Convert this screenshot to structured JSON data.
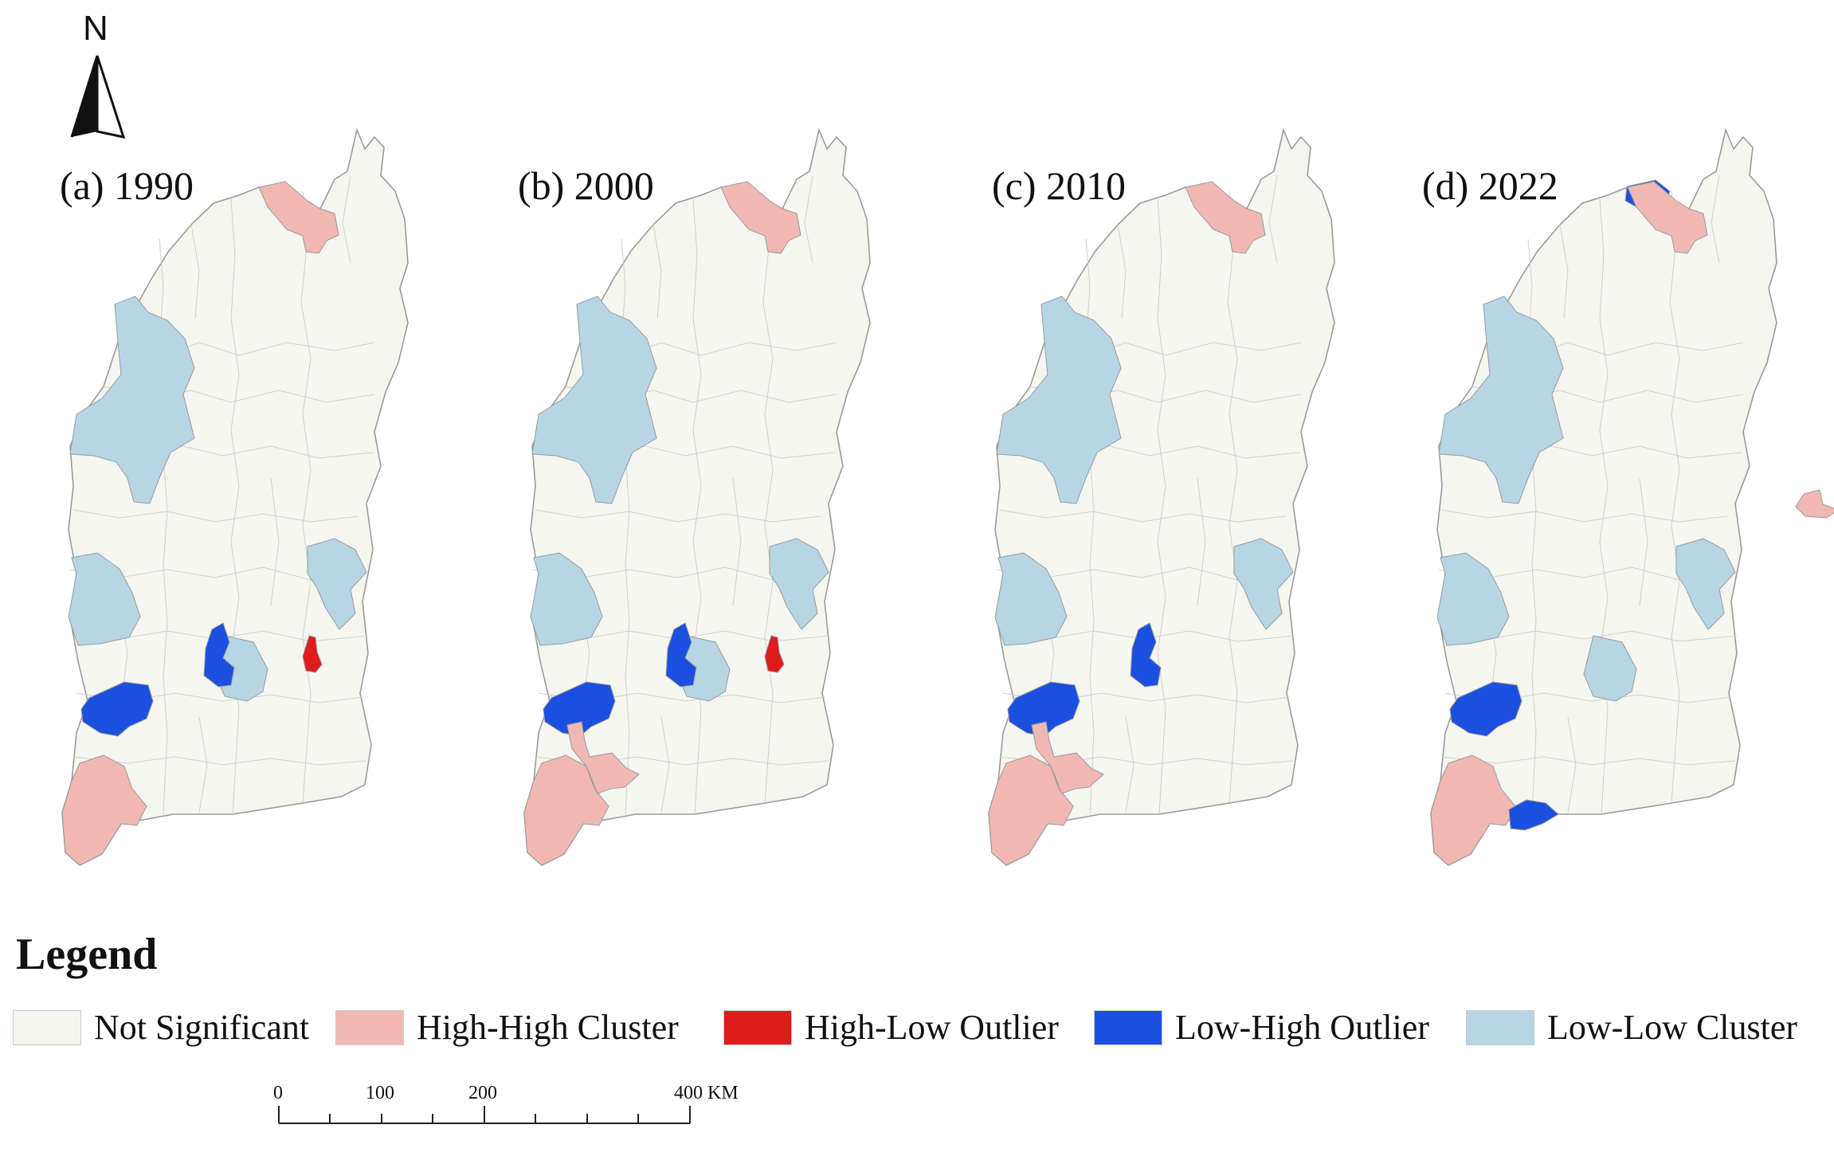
{
  "north_arrow": {
    "label": "N"
  },
  "legend": {
    "title": "Legend",
    "items": [
      {
        "label": "Not Significant",
        "color": "#f6f6f1"
      },
      {
        "label": "High-High Cluster",
        "color": "#f1b8b3"
      },
      {
        "label": "High-Low Outlier",
        "color": "#dd1c1c"
      },
      {
        "label": "Low-High Outlier",
        "color": "#1b4fe0"
      },
      {
        "label": "Low-Low Cluster",
        "color": "#b6d6e6"
      }
    ]
  },
  "panels": [
    {
      "label": "(a) 1990",
      "patches": [
        {
          "region": "north-cluster",
          "category": "High-High Cluster"
        },
        {
          "region": "northwest-cluster",
          "category": "Low-Low Cluster"
        },
        {
          "region": "west-central-cluster",
          "category": "Low-Low Cluster"
        },
        {
          "region": "east-central-cluster",
          "category": "Low-Low Cluster"
        },
        {
          "region": "central-south-cluster",
          "category": "Low-Low Cluster"
        },
        {
          "region": "central-south-outlier",
          "category": "Low-High Outlier"
        },
        {
          "region": "east-south-outlier",
          "category": "High-Low Outlier"
        },
        {
          "region": "southwest-outlier",
          "category": "Low-High Outlier"
        },
        {
          "region": "southwest-cluster",
          "category": "High-High Cluster"
        }
      ]
    },
    {
      "label": "(b) 2000",
      "patches": [
        {
          "region": "north-cluster",
          "category": "High-High Cluster"
        },
        {
          "region": "northwest-cluster",
          "category": "Low-Low Cluster"
        },
        {
          "region": "west-central-cluster",
          "category": "Low-Low Cluster"
        },
        {
          "region": "east-central-cluster",
          "category": "Low-Low Cluster"
        },
        {
          "region": "central-south-cluster",
          "category": "Low-Low Cluster"
        },
        {
          "region": "central-south-outlier",
          "category": "Low-High Outlier"
        },
        {
          "region": "east-south-outlier",
          "category": "High-Low Outlier"
        },
        {
          "region": "southwest-outlier",
          "category": "Low-High Outlier"
        },
        {
          "region": "southwest-cluster",
          "category": "High-High Cluster"
        },
        {
          "region": "south-central-cluster",
          "category": "High-High Cluster"
        }
      ]
    },
    {
      "label": "(c) 2010",
      "patches": [
        {
          "region": "north-cluster",
          "category": "High-High Cluster"
        },
        {
          "region": "northwest-cluster",
          "category": "Low-Low Cluster"
        },
        {
          "region": "west-central-cluster",
          "category": "Low-Low Cluster"
        },
        {
          "region": "east-central-cluster",
          "category": "Low-Low Cluster"
        },
        {
          "region": "central-south-outlier",
          "category": "Low-High Outlier"
        },
        {
          "region": "southwest-outlier",
          "category": "Low-High Outlier"
        },
        {
          "region": "southwest-cluster",
          "category": "High-High Cluster"
        },
        {
          "region": "south-central-cluster",
          "category": "High-High Cluster"
        }
      ]
    },
    {
      "label": "(d) 2022",
      "patches": [
        {
          "region": "north-outlier",
          "category": "Low-High Outlier"
        },
        {
          "region": "north-cluster",
          "category": "High-High Cluster"
        },
        {
          "region": "northwest-cluster",
          "category": "Low-Low Cluster"
        },
        {
          "region": "central-cluster",
          "category": "High-High Cluster"
        },
        {
          "region": "west-central-cluster",
          "category": "Low-Low Cluster"
        },
        {
          "region": "east-central-cluster",
          "category": "Low-Low Cluster"
        },
        {
          "region": "central-south-cluster",
          "category": "Low-Low Cluster"
        },
        {
          "region": "southwest-outlier",
          "category": "Low-High Outlier"
        },
        {
          "region": "southwest-cluster",
          "category": "High-High Cluster"
        },
        {
          "region": "southeast-outlier",
          "category": "Low-High Outlier"
        }
      ]
    }
  ],
  "scale_bar": {
    "ticks": [
      "0",
      "100",
      "200",
      "400 KM"
    ]
  }
}
